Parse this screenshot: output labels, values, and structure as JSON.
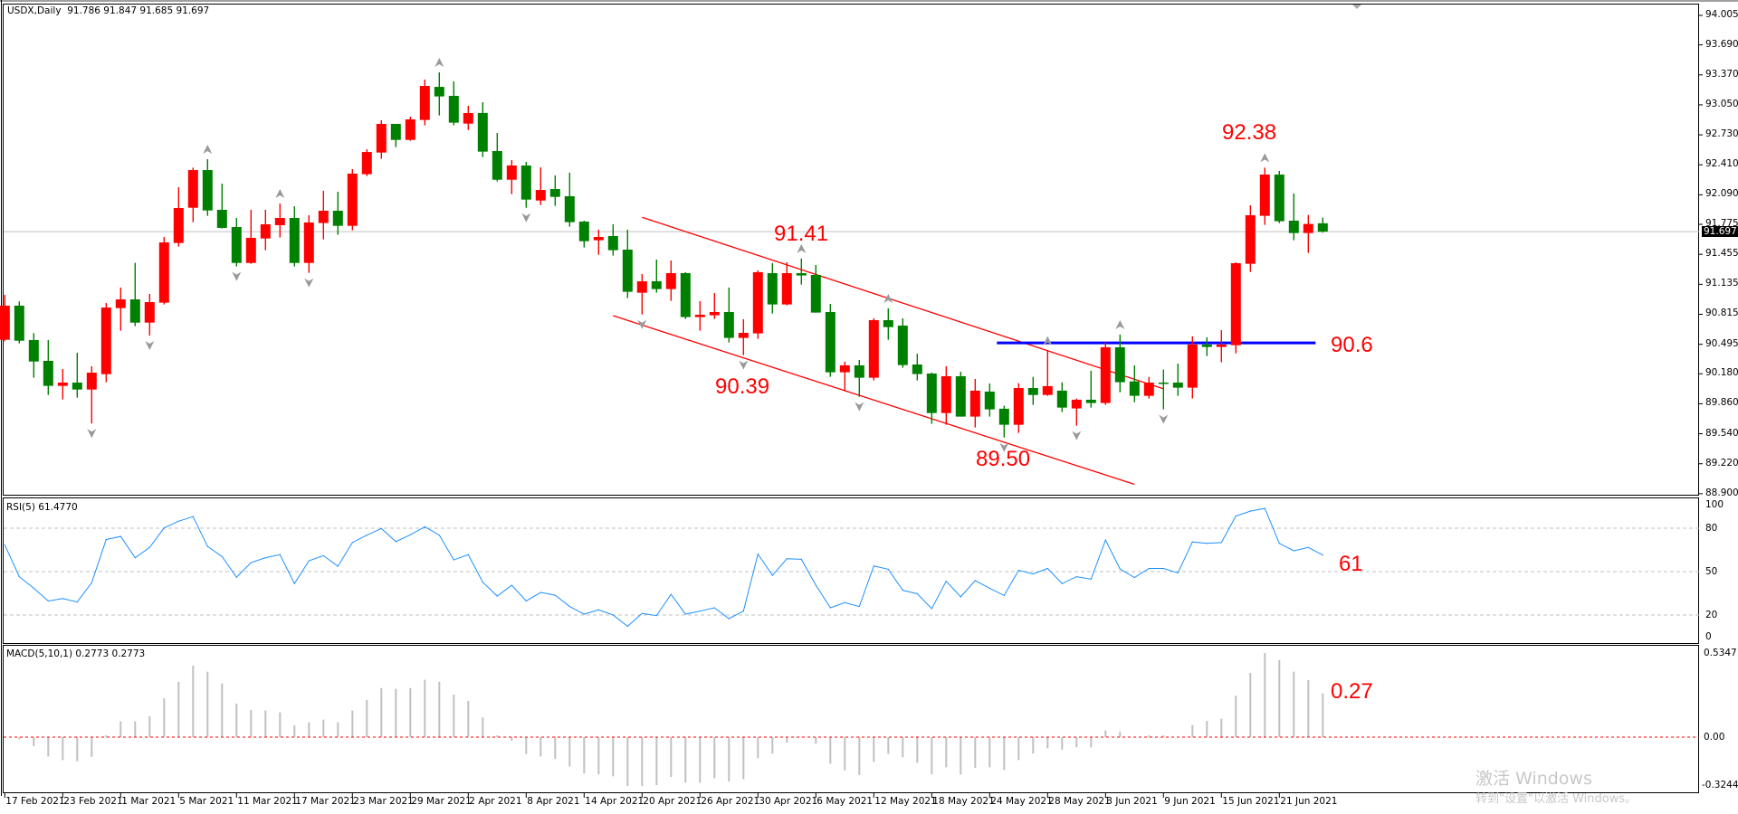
{
  "header": {
    "symbol": "USDX,Daily",
    "ohlc": "91.786 91.847 91.685 91.697"
  },
  "colors": {
    "bull": "#ff0000",
    "bear": "#008000",
    "rsi_line": "#1e90ff",
    "macd_bar": "#c0c0c0",
    "zero_line": "#ff0000",
    "channel": "#ff0000",
    "level": "#0000ff",
    "fractal": "#999999",
    "current_price_line": "#c0c0c0"
  },
  "current_price": "91.697",
  "price_axis": {
    "ticks": [
      "94.005",
      "93.690",
      "93.370",
      "93.050",
      "92.730",
      "92.410",
      "92.090",
      "91.775",
      "91.455",
      "91.135",
      "90.815",
      "90.495",
      "90.180",
      "89.860",
      "89.540",
      "89.220",
      "88.900"
    ]
  },
  "rsi": {
    "title": "RSI(5) 61.4770",
    "levels": [
      "100",
      "80",
      "50",
      "20",
      "0"
    ]
  },
  "macd": {
    "title": "MACD(5,10,1) 0.2773 0.2773",
    "axis": [
      "0.5347",
      "0.00",
      "-0.3244"
    ]
  },
  "date_axis": [
    {
      "label": "17 Feb 2021",
      "date": "2021-02-17"
    },
    {
      "label": "23 Feb 2021",
      "date": "2021-02-23"
    },
    {
      "label": "1 Mar 2021",
      "date": "2021-03-01"
    },
    {
      "label": "5 Mar 2021",
      "date": "2021-03-05"
    },
    {
      "label": "11 Mar 2021",
      "date": "2021-03-11"
    },
    {
      "label": "17 Mar 2021",
      "date": "2021-03-17"
    },
    {
      "label": "23 Mar 2021",
      "date": "2021-03-23"
    },
    {
      "label": "29 Mar 2021",
      "date": "2021-03-29"
    },
    {
      "label": "2 Apr 2021",
      "date": "2021-04-02"
    },
    {
      "label": "8 Apr 2021",
      "date": "2021-04-08"
    },
    {
      "label": "14 Apr 2021",
      "date": "2021-04-14"
    },
    {
      "label": "20 Apr 2021",
      "date": "2021-04-20"
    },
    {
      "label": "26 Apr 2021",
      "date": "2021-04-26"
    },
    {
      "label": "30 Apr 2021",
      "date": "2021-04-30"
    },
    {
      "label": "6 May 2021",
      "date": "2021-05-06"
    },
    {
      "label": "12 May 2021",
      "date": "2021-05-12"
    },
    {
      "label": "18 May 2021",
      "date": "2021-05-18"
    },
    {
      "label": "24 May 2021",
      "date": "2021-05-24"
    },
    {
      "label": "28 May 2021",
      "date": "2021-05-28"
    },
    {
      "label": "3 Jun 2021",
      "date": "2021-06-03"
    },
    {
      "label": "9 Jun 2021",
      "date": "2021-06-09"
    },
    {
      "label": "15 Jun 2021",
      "date": "2021-06-15"
    },
    {
      "label": "21 Jun 2021",
      "date": "2021-06-21"
    }
  ],
  "annotations": {
    "high_apr": "91.41",
    "low_apr": "90.39",
    "low_may": "89.50",
    "high_jun": "92.38",
    "level": "90.6",
    "rsi_value": "61",
    "macd_value": "0.27"
  },
  "watermark": {
    "line1": "激活 Windows",
    "line2": "转到\"设置\"以激活 Windows。"
  },
  "chart_data": {
    "type": "candlestick",
    "symbol": "USDX",
    "timeframe": "Daily",
    "ylim": [
      88.9,
      94.005
    ],
    "grid": false,
    "candle_fields": [
      "date",
      "open",
      "high",
      "low",
      "close"
    ],
    "candles": [
      [
        "2021-02-17",
        90.543,
        91.022,
        90.527,
        90.907
      ],
      [
        "2021-02-18",
        90.907,
        90.952,
        90.504,
        90.533
      ],
      [
        "2021-02-19",
        90.54,
        90.614,
        90.138,
        90.311
      ],
      [
        "2021-02-22",
        90.318,
        90.54,
        89.954,
        90.051
      ],
      [
        "2021-02-23",
        90.051,
        90.231,
        89.906,
        90.086
      ],
      [
        "2021-02-24",
        90.086,
        90.405,
        89.925,
        90.012
      ],
      [
        "2021-02-25",
        90.012,
        90.26,
        89.649,
        90.192
      ],
      [
        "2021-02-26",
        90.176,
        90.936,
        90.09,
        90.887
      ],
      [
        "2021-03-01",
        90.881,
        91.1,
        90.64,
        90.974
      ],
      [
        "2021-03-02",
        90.974,
        91.364,
        90.688,
        90.726
      ],
      [
        "2021-03-03",
        90.726,
        91.032,
        90.588,
        90.945
      ],
      [
        "2021-03-04",
        90.939,
        91.64,
        90.92,
        91.582
      ],
      [
        "2021-03-05",
        91.576,
        92.171,
        91.537,
        91.949
      ],
      [
        "2021-03-08",
        91.952,
        92.38,
        91.798,
        92.354
      ],
      [
        "2021-03-09",
        92.354,
        92.47,
        91.865,
        91.923
      ],
      [
        "2021-03-10",
        91.93,
        92.21,
        91.73,
        91.737
      ],
      [
        "2021-03-11",
        91.746,
        91.843,
        91.325,
        91.363
      ],
      [
        "2021-03-12",
        91.363,
        91.93,
        91.354,
        91.631
      ],
      [
        "2021-03-15",
        91.624,
        91.93,
        91.499,
        91.775
      ],
      [
        "2021-03-16",
        91.766,
        91.997,
        91.634,
        91.843
      ],
      [
        "2021-03-17",
        91.843,
        91.968,
        91.325,
        91.363
      ],
      [
        "2021-03-18",
        91.363,
        91.872,
        91.257,
        91.795
      ],
      [
        "2021-03-19",
        91.789,
        92.133,
        91.614,
        91.92
      ],
      [
        "2021-03-22",
        91.92,
        92.123,
        91.663,
        91.759
      ],
      [
        "2021-03-23",
        91.759,
        92.364,
        91.711,
        92.316
      ],
      [
        "2021-03-24",
        92.31,
        92.576,
        92.29,
        92.547
      ],
      [
        "2021-03-25",
        92.541,
        92.885,
        92.474,
        92.847
      ],
      [
        "2021-03-26",
        92.847,
        92.847,
        92.599,
        92.676
      ],
      [
        "2021-03-29",
        92.676,
        92.924,
        92.667,
        92.895
      ],
      [
        "2021-03-30",
        92.889,
        93.32,
        92.831,
        93.252
      ],
      [
        "2021-03-31",
        93.242,
        93.397,
        92.937,
        93.14
      ],
      [
        "2021-04-01",
        93.146,
        93.3,
        92.831,
        92.86
      ],
      [
        "2021-04-02",
        92.85,
        93.04,
        92.782,
        92.963
      ],
      [
        "2021-04-05",
        92.963,
        93.078,
        92.493,
        92.551
      ],
      [
        "2021-04-06",
        92.557,
        92.75,
        92.232,
        92.251
      ],
      [
        "2021-04-07",
        92.251,
        92.461,
        92.097,
        92.403
      ],
      [
        "2021-04-08",
        92.403,
        92.441,
        91.952,
        92.039
      ],
      [
        "2021-04-09",
        92.029,
        92.383,
        91.981,
        92.142
      ],
      [
        "2021-04-12",
        92.152,
        92.297,
        91.972,
        92.068
      ],
      [
        "2021-04-13",
        92.075,
        92.326,
        91.75,
        91.798
      ],
      [
        "2021-04-14",
        91.804,
        91.814,
        91.528,
        91.595
      ],
      [
        "2021-04-15",
        91.605,
        91.717,
        91.45,
        91.64
      ],
      [
        "2021-04-16",
        91.65,
        91.775,
        91.441,
        91.499
      ],
      [
        "2021-04-19",
        91.505,
        91.717,
        90.987,
        91.055
      ],
      [
        "2021-04-20",
        91.045,
        91.244,
        90.813,
        91.167
      ],
      [
        "2021-04-21",
        91.167,
        91.399,
        91.045,
        91.084
      ],
      [
        "2021-04-22",
        91.084,
        91.389,
        90.958,
        91.254
      ],
      [
        "2021-04-23",
        91.254,
        91.264,
        90.765,
        90.785
      ],
      [
        "2021-04-26",
        90.785,
        90.955,
        90.64,
        90.81
      ],
      [
        "2021-04-27",
        90.804,
        91.042,
        90.765,
        90.839
      ],
      [
        "2021-04-28",
        90.839,
        91.1,
        90.514,
        90.563
      ],
      [
        "2021-04-29",
        90.563,
        90.762,
        90.379,
        90.617
      ],
      [
        "2021-04-30",
        90.611,
        91.283,
        90.553,
        91.264
      ],
      [
        "2021-05-03",
        91.254,
        91.361,
        90.823,
        90.92
      ],
      [
        "2021-05-04",
        90.92,
        91.37,
        90.91,
        91.254
      ],
      [
        "2021-05-05",
        91.254,
        91.41,
        91.132,
        91.229
      ],
      [
        "2021-05-06",
        91.235,
        91.341,
        90.833,
        90.833
      ],
      [
        "2021-05-07",
        90.839,
        90.926,
        90.148,
        90.196
      ],
      [
        "2021-05-10",
        90.196,
        90.309,
        89.993,
        90.27
      ],
      [
        "2021-05-11",
        90.27,
        90.328,
        89.935,
        90.138
      ],
      [
        "2021-05-12",
        90.138,
        90.772,
        90.109,
        90.752
      ],
      [
        "2021-05-13",
        90.752,
        90.878,
        90.543,
        90.678
      ],
      [
        "2021-05-14",
        90.694,
        90.772,
        90.244,
        90.273
      ],
      [
        "2021-05-17",
        90.279,
        90.395,
        90.109,
        90.177
      ],
      [
        "2021-05-18",
        90.183,
        90.193,
        89.646,
        89.761
      ],
      [
        "2021-05-19",
        89.761,
        90.26,
        89.636,
        90.154
      ],
      [
        "2021-05-20",
        90.154,
        90.202,
        89.723,
        89.723
      ],
      [
        "2021-05-21",
        89.723,
        90.125,
        89.607,
        90.0
      ],
      [
        "2021-05-24",
        89.99,
        90.077,
        89.723,
        89.8
      ],
      [
        "2021-05-25",
        89.807,
        89.839,
        89.5,
        89.636
      ],
      [
        "2021-05-26",
        89.636,
        90.08,
        89.549,
        90.028
      ],
      [
        "2021-05-27",
        90.028,
        90.147,
        89.848,
        89.954
      ],
      [
        "2021-05-28",
        89.954,
        90.427,
        89.945,
        90.048
      ],
      [
        "2021-05-31",
        90.0,
        90.089,
        89.771,
        89.819
      ],
      [
        "2021-06-01",
        89.81,
        89.916,
        89.626,
        89.903
      ],
      [
        "2021-06-02",
        89.903,
        90.212,
        89.819,
        89.868
      ],
      [
        "2021-06-03",
        89.868,
        90.517,
        89.848,
        90.463
      ],
      [
        "2021-06-04",
        90.463,
        90.598,
        89.983,
        90.09
      ],
      [
        "2021-06-07",
        90.099,
        90.27,
        89.877,
        89.945
      ],
      [
        "2021-06-08",
        89.945,
        90.147,
        89.916,
        90.086
      ],
      [
        "2021-06-09",
        90.086,
        90.225,
        89.8,
        90.08
      ],
      [
        "2021-06-10",
        90.086,
        90.289,
        89.945,
        90.032
      ],
      [
        "2021-06-11",
        90.032,
        90.579,
        89.916,
        90.492
      ],
      [
        "2021-06-14",
        90.492,
        90.569,
        90.369,
        90.466
      ],
      [
        "2021-06-15",
        90.466,
        90.646,
        90.302,
        90.492
      ],
      [
        "2021-06-16",
        90.485,
        91.37,
        90.398,
        91.36
      ],
      [
        "2021-06-17",
        91.354,
        91.978,
        91.267,
        91.872
      ],
      [
        "2021-06-18",
        91.866,
        92.38,
        91.769,
        92.306
      ],
      [
        "2021-06-21",
        92.306,
        92.345,
        91.788,
        91.808
      ],
      [
        "2021-06-22",
        91.814,
        92.104,
        91.605,
        91.682
      ],
      [
        "2021-06-23",
        91.682,
        91.875,
        91.47,
        91.779
      ],
      [
        "2021-06-24",
        91.786,
        91.847,
        91.685,
        91.697
      ]
    ],
    "fractals_up": [
      "2021-03-09",
      "2021-03-16",
      "2021-03-31",
      "2021-05-05",
      "2021-05-13",
      "2021-05-28",
      "2021-06-04",
      "2021-06-18"
    ],
    "fractals_down": [
      "2021-02-25",
      "2021-03-03",
      "2021-03-11",
      "2021-03-18",
      "2021-04-08",
      "2021-04-20",
      "2021-04-29",
      "2021-05-11",
      "2021-05-25",
      "2021-06-01",
      "2021-06-09"
    ],
    "channel_upper": [
      [
        "2021-04-20",
        91.85
      ],
      [
        "2021-06-09",
        90.02
      ]
    ],
    "channel_lower": [
      [
        "2021-04-16",
        90.8
      ],
      [
        "2021-06-07",
        89.0
      ]
    ],
    "horizontal_level": {
      "from": "2021-05-25",
      "to": "2021-06-23",
      "price": 90.51
    },
    "rsi_period": 5,
    "rsi_ylim": [
      0,
      100
    ],
    "rsi_values": [
      68.4,
      46.5,
      38.5,
      29.7,
      31.4,
      29,
      42.3,
      72.2,
      74.3,
      59.6,
      66.7,
      80.2,
      84.8,
      88,
      67.4,
      60.4,
      46.1,
      56.2,
      59.6,
      61.7,
      41.7,
      57.5,
      61,
      53.7,
      70.1,
      75.2,
      79.8,
      70.7,
      75.4,
      81,
      75.2,
      58.1,
      61.7,
      42.7,
      33.1,
      40.6,
      29.7,
      35.6,
      33.7,
      25.9,
      20.6,
      23.6,
      20,
      12.2,
      21.1,
      19.6,
      34.3,
      20.6,
      22.7,
      25,
      17.5,
      22.7,
      62.1,
      47.4,
      58.9,
      58.5,
      40.6,
      25,
      28.6,
      25.9,
      53.9,
      51.6,
      37.1,
      34.7,
      24.4,
      43.4,
      32.6,
      43.8,
      38.5,
      33.5,
      50.9,
      48.4,
      52.2,
      41.7,
      46.5,
      44.8,
      71.8,
      51.8,
      45.9,
      52.2,
      52.2,
      49.1,
      70.5,
      69.5,
      70.1,
      88.4,
      91.8,
      93.7,
      69.5,
      64.4,
      66.7,
      61.477
    ],
    "rsi_levels": [
      80,
      50,
      20
    ],
    "macd_params": [
      5,
      10,
      1
    ],
    "macd_ylim": [
      -0.3244,
      0.5347
    ],
    "macd_values": [
      0,
      -0.013,
      -0.057,
      -0.123,
      -0.146,
      -0.153,
      -0.126,
      0.011,
      0.1,
      0.1,
      0.132,
      0.247,
      0.351,
      0.454,
      0.416,
      0.341,
      0.213,
      0.172,
      0.169,
      0.157,
      0.075,
      0.094,
      0.111,
      0.094,
      0.169,
      0.236,
      0.312,
      0.307,
      0.312,
      0.364,
      0.352,
      0.27,
      0.23,
      0.126,
      0.011,
      -0.023,
      -0.107,
      -0.123,
      -0.138,
      -0.186,
      -0.23,
      -0.236,
      -0.249,
      -0.31,
      -0.31,
      -0.305,
      -0.253,
      -0.289,
      -0.289,
      -0.261,
      -0.282,
      -0.268,
      -0.134,
      -0.105,
      -0.036,
      0.002,
      -0.042,
      -0.169,
      -0.211,
      -0.241,
      -0.157,
      -0.107,
      -0.128,
      -0.163,
      -0.236,
      -0.192,
      -0.238,
      -0.195,
      -0.192,
      -0.209,
      -0.146,
      -0.105,
      -0.071,
      -0.08,
      -0.065,
      -0.065,
      0.042,
      0.034,
      0,
      0.011,
      0.011,
      0,
      0.077,
      0.103,
      0.117,
      0.264,
      0.408,
      0.534,
      0.489,
      0.416,
      0.362,
      0.2773
    ]
  }
}
